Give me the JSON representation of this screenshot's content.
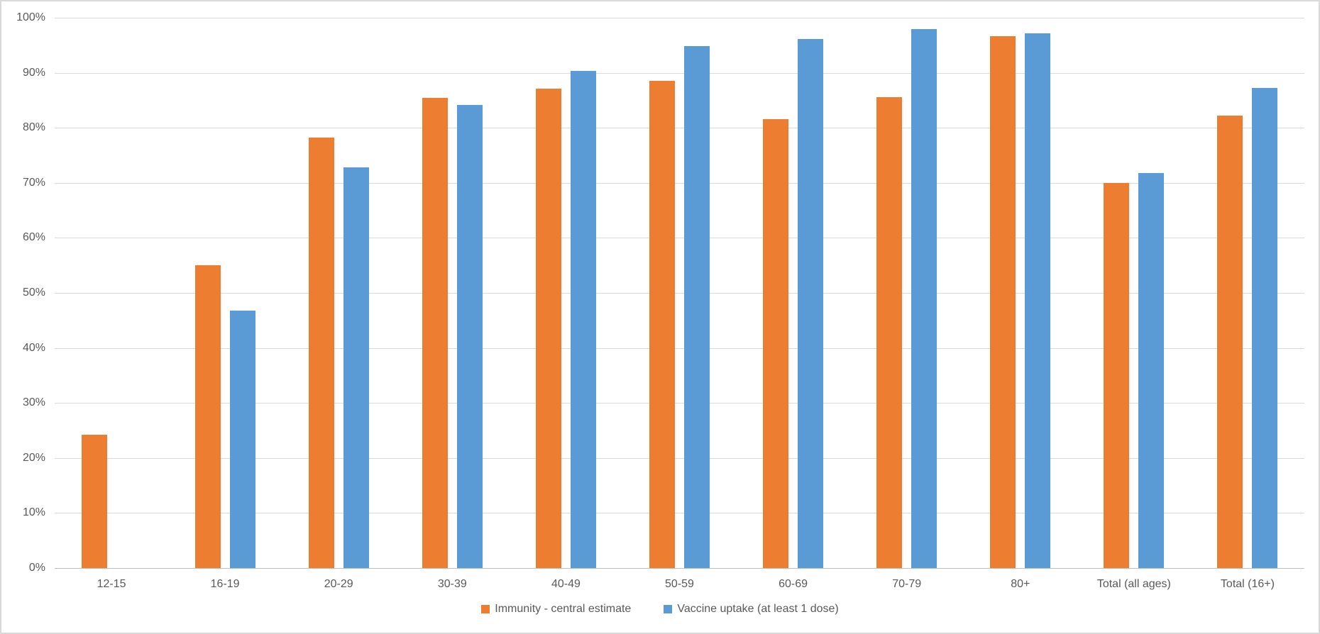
{
  "chart_data": {
    "type": "bar",
    "title": "",
    "xlabel": "",
    "ylabel": "",
    "categories": [
      "12-15",
      "16-19",
      "20-29",
      "30-39",
      "40-49",
      "50-59",
      "60-69",
      "70-79",
      "80+",
      "Total (all ages)",
      "Total (16+)"
    ],
    "series": [
      {
        "name": "Immunity - central estimate",
        "color": "#ED7D31",
        "values": [
          24.2,
          55.0,
          78.2,
          85.4,
          87.1,
          88.5,
          81.6,
          85.6,
          96.7,
          70.0,
          82.2
        ]
      },
      {
        "name": "Vaccine uptake (at least 1 dose)",
        "color": "#5B9BD5",
        "values": [
          null,
          46.8,
          72.8,
          84.1,
          90.4,
          94.9,
          96.2,
          97.9,
          97.2,
          71.8,
          87.2
        ]
      }
    ],
    "ylim": [
      0,
      100
    ],
    "ytick_step": 10,
    "ytick_labels": [
      "0%",
      "10%",
      "20%",
      "30%",
      "40%",
      "50%",
      "60%",
      "70%",
      "80%",
      "90%",
      "100%"
    ],
    "grid": true,
    "legend_position": "bottom"
  }
}
